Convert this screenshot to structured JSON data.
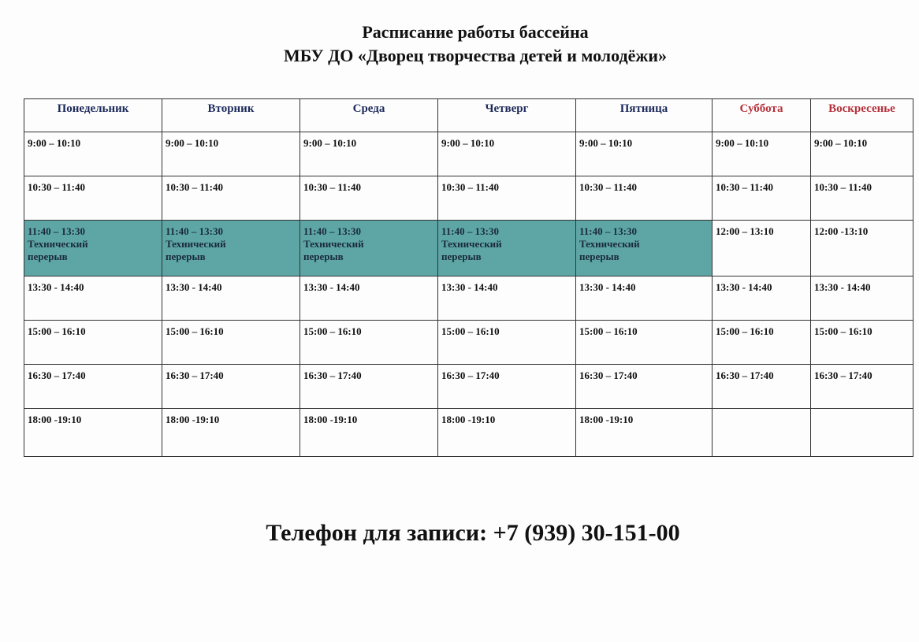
{
  "title_line1": "Расписание работы бассейна",
  "title_line2": "МБУ ДО «Дворец творчества детей и молодёжи»",
  "colors": {
    "weekday_header": "#1c2a5a",
    "weekend_header": "#b5303a",
    "break_fill": "#5ea6a6"
  },
  "days": [
    "Понедельник",
    "Вторник",
    "Среда",
    "Четверг",
    "Пятница",
    "Суббота",
    "Воскресенье"
  ],
  "rows": [
    [
      {
        "time": "9:00 – 10:10"
      },
      {
        "time": "9:00 – 10:10"
      },
      {
        "time": "9:00 – 10:10"
      },
      {
        "time": "9:00 – 10:10"
      },
      {
        "time": "9:00 – 10:10"
      },
      {
        "time": "9:00 – 10:10"
      },
      {
        "time": "9:00 – 10:10"
      }
    ],
    [
      {
        "time": "10:30 – 11:40"
      },
      {
        "time": "10:30 – 11:40"
      },
      {
        "time": "10:30 – 11:40"
      },
      {
        "time": "10:30 – 11:40"
      },
      {
        "time": "10:30 – 11:40"
      },
      {
        "time": "10:30 – 11:40"
      },
      {
        "time": "10:30 – 11:40"
      }
    ],
    [
      {
        "time": "11:40 – 13:30",
        "note": "Технический перерыв"
      },
      {
        "time": "11:40 – 13:30",
        "note": "Технический перерыв"
      },
      {
        "time": "11:40 – 13:30",
        "note": "Технический перерыв"
      },
      {
        "time": "11:40 – 13:30",
        "note": "Технический перерыв"
      },
      {
        "time": "11:40 – 13:30",
        "note": "Технический перерыв"
      },
      {
        "time": "12:00 – 13:10"
      },
      {
        "time": "12:00 -13:10"
      }
    ],
    [
      {
        "time": "13:30 - 14:40"
      },
      {
        "time": "13:30 - 14:40"
      },
      {
        "time": "13:30 - 14:40"
      },
      {
        "time": "13:30 - 14:40"
      },
      {
        "time": "13:30 - 14:40"
      },
      {
        "time": "13:30 - 14:40"
      },
      {
        "time": "13:30 - 14:40"
      }
    ],
    [
      {
        "time": "15:00 – 16:10"
      },
      {
        "time": "15:00 – 16:10"
      },
      {
        "time": "15:00 – 16:10"
      },
      {
        "time": "15:00 – 16:10"
      },
      {
        "time": "15:00 – 16:10"
      },
      {
        "time": "15:00 – 16:10"
      },
      {
        "time": "15:00 – 16:10"
      }
    ],
    [
      {
        "time": "16:30 – 17:40"
      },
      {
        "time": "16:30 – 17:40"
      },
      {
        "time": "16:30 – 17:40"
      },
      {
        "time": "16:30 – 17:40"
      },
      {
        "time": "16:30 – 17:40"
      },
      {
        "time": "16:30 – 17:40"
      },
      {
        "time": "16:30 – 17:40"
      }
    ],
    [
      {
        "time": "18:00 -19:10"
      },
      {
        "time": "18:00 -19:10"
      },
      {
        "time": "18:00 -19:10"
      },
      {
        "time": "18:00 -19:10"
      },
      {
        "time": "18:00 -19:10"
      },
      {
        "time": ""
      },
      {
        "time": ""
      }
    ]
  ],
  "phone_line": "Телефон для записи: +7 (939) 30-151-00"
}
